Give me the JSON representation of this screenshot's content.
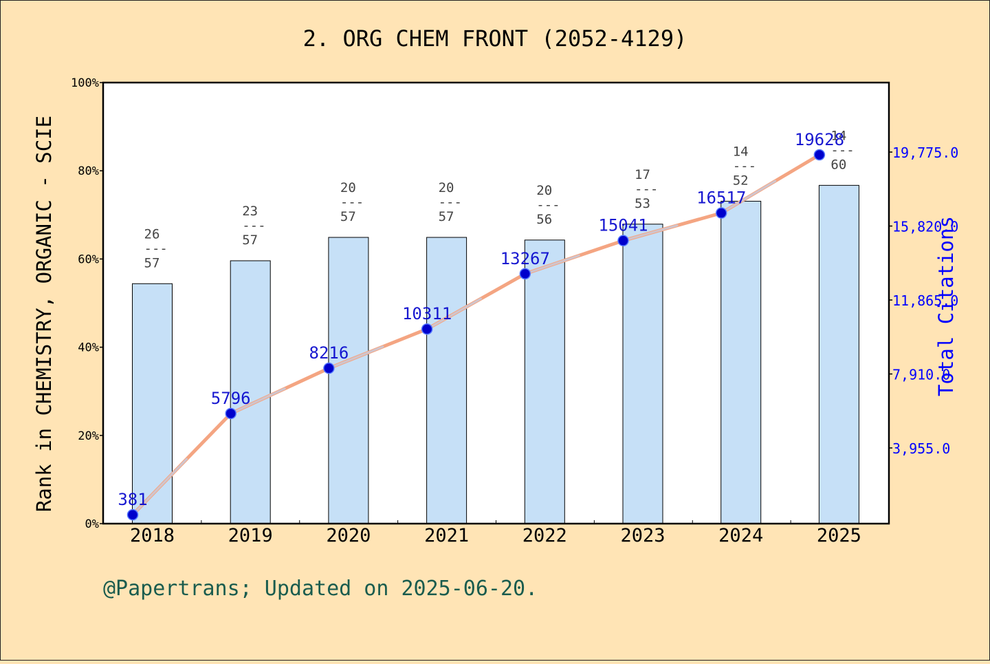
{
  "chart_data": {
    "type": "bar",
    "title": "2. ORG CHEM FRONT (2052-4129)",
    "footer": "@Papertrans; Updated on 2025-06-20.",
    "ylabel_left": "Rank in CHEMISTRY, ORGANIC - SCIE",
    "ylabel_right": "Total Citations",
    "categories": [
      "2018",
      "2019",
      "2020",
      "2021",
      "2022",
      "2023",
      "2024",
      "2025"
    ],
    "left_axis": {
      "ylim": [
        0,
        100
      ],
      "ticks": [
        0,
        20,
        40,
        60,
        80,
        100
      ],
      "tick_labels": [
        "0%",
        "20%",
        "40%",
        "60%",
        "80%",
        "100%"
      ]
    },
    "right_axis": {
      "ticks": [
        3955,
        7910,
        11865,
        15820,
        19775
      ],
      "tick_labels": [
        "3,955.0",
        "7,910.0",
        "11,865.0",
        "15,820.0",
        "19,775.0"
      ]
    },
    "bars": {
      "name": "Rank percentile",
      "values": [
        54.4,
        59.6,
        64.9,
        64.9,
        64.3,
        67.9,
        73.1,
        76.7
      ],
      "rank_labels": [
        {
          "rank": "26",
          "sep": "---",
          "total": "57"
        },
        {
          "rank": "23",
          "sep": "---",
          "total": "57"
        },
        {
          "rank": "20",
          "sep": "---",
          "total": "57"
        },
        {
          "rank": "20",
          "sep": "---",
          "total": "57"
        },
        {
          "rank": "20",
          "sep": "---",
          "total": "56"
        },
        {
          "rank": "17",
          "sep": "---",
          "total": "53"
        },
        {
          "rank": "14",
          "sep": "---",
          "total": "52"
        },
        {
          "rank": "14",
          "sep": "---",
          "total": "60"
        }
      ]
    },
    "line": {
      "name": "Total Citations",
      "values": [
        381,
        5796,
        8216,
        10311,
        13267,
        15041,
        16517,
        19628
      ],
      "labels": [
        "381",
        "5796",
        "8216",
        "10311",
        "13267",
        "15041",
        "16517",
        "19628"
      ]
    },
    "grid": false,
    "colors": {
      "background": "#ffe4b5",
      "plot_bg": "#ffffff",
      "bar_fill": "#c6e0f7",
      "bar_stroke": "#000000",
      "line": "#f4a582",
      "line_highlight": "#c8cde0",
      "marker": "#0000cc",
      "citation_text": "#0000cc",
      "rank_text": "#444444",
      "right_axis_text": "#0000ff",
      "footer_text": "#1a5c4e"
    }
  }
}
